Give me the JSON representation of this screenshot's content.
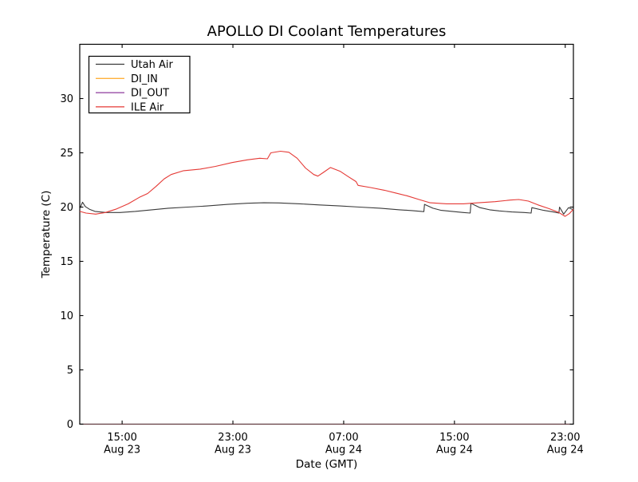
{
  "figure": {
    "background": "#ffffff"
  },
  "chart_data": {
    "type": "line",
    "title": "APOLLO DI Coolant Temperatures",
    "xlabel": "Date (GMT)",
    "ylabel": "Temperature (C)",
    "x_encoding": "hours from left axis edge (left edge ~ Aug 23 12:00 GMT)",
    "xlim": [
      0,
      35.65
    ],
    "ylim": [
      0,
      35
    ],
    "yticks": [
      0,
      5,
      10,
      15,
      20,
      25,
      30
    ],
    "xticks": [
      {
        "t": 3.06,
        "time": "15:00",
        "date": "Aug 23"
      },
      {
        "t": 11.06,
        "time": "23:00",
        "date": "Aug 23"
      },
      {
        "t": 19.06,
        "time": "07:00",
        "date": "Aug 24"
      },
      {
        "t": 27.06,
        "time": "15:00",
        "date": "Aug 24"
      },
      {
        "t": 35.06,
        "time": "23:00",
        "date": "Aug 24"
      }
    ],
    "grid": false,
    "legend_position": "upper left",
    "series": [
      {
        "name": "Utah Air",
        "color": "#3a3a3a",
        "points": [
          [
            0,
            19.85
          ],
          [
            0.2,
            20.45
          ],
          [
            0.4,
            20.05
          ],
          [
            0.7,
            19.8
          ],
          [
            1.1,
            19.6
          ],
          [
            1.9,
            19.5
          ],
          [
            2.9,
            19.5
          ],
          [
            4,
            19.6
          ],
          [
            5.2,
            19.75
          ],
          [
            6.4,
            19.9
          ],
          [
            7.8,
            20.0
          ],
          [
            9.2,
            20.1
          ],
          [
            10.7,
            20.25
          ],
          [
            12.1,
            20.35
          ],
          [
            13.3,
            20.4
          ],
          [
            14.4,
            20.38
          ],
          [
            15.9,
            20.3
          ],
          [
            17.3,
            20.2
          ],
          [
            18.8,
            20.1
          ],
          [
            20.2,
            20.0
          ],
          [
            21.7,
            19.9
          ],
          [
            23.1,
            19.75
          ],
          [
            24,
            19.68
          ],
          [
            24.85,
            19.58
          ],
          [
            24.9,
            20.25
          ],
          [
            25.5,
            19.9
          ],
          [
            26.1,
            19.7
          ],
          [
            26.9,
            19.6
          ],
          [
            27.7,
            19.5
          ],
          [
            28.2,
            19.45
          ],
          [
            28.25,
            20.35
          ],
          [
            28.9,
            19.95
          ],
          [
            29.6,
            19.75
          ],
          [
            30.3,
            19.65
          ],
          [
            31.2,
            19.55
          ],
          [
            32.1,
            19.5
          ],
          [
            32.6,
            19.45
          ],
          [
            32.65,
            19.95
          ],
          [
            33.5,
            19.7
          ],
          [
            34.2,
            19.55
          ],
          [
            34.6,
            19.45
          ],
          [
            34.65,
            20.0
          ],
          [
            34.95,
            19.35
          ],
          [
            35.3,
            19.95
          ],
          [
            35.65,
            19.75
          ]
        ]
      },
      {
        "name": "DI_IN",
        "color": "#ffb13b",
        "points": [
          [
            0,
            0
          ],
          [
            35.65,
            0
          ]
        ]
      },
      {
        "name": "DI_OUT",
        "color": "#8e3a9c",
        "opacity": 0.6,
        "points": [
          [
            0,
            0
          ],
          [
            35.65,
            0
          ]
        ]
      },
      {
        "name": "ILE Air",
        "color": "#e53935",
        "points": [
          [
            0,
            19.6
          ],
          [
            0.45,
            19.45
          ],
          [
            1.15,
            19.35
          ],
          [
            1.85,
            19.5
          ],
          [
            2.6,
            19.8
          ],
          [
            3.5,
            20.3
          ],
          [
            4.3,
            20.9
          ],
          [
            4.9,
            21.25
          ],
          [
            5.5,
            21.9
          ],
          [
            6.1,
            22.6
          ],
          [
            6.6,
            23.0
          ],
          [
            7.5,
            23.35
          ],
          [
            8.7,
            23.5
          ],
          [
            9.8,
            23.75
          ],
          [
            11,
            24.1
          ],
          [
            12.1,
            24.35
          ],
          [
            13,
            24.5
          ],
          [
            13.55,
            24.45
          ],
          [
            13.8,
            25.0
          ],
          [
            14.5,
            25.15
          ],
          [
            15.1,
            25.05
          ],
          [
            15.7,
            24.5
          ],
          [
            16.3,
            23.6
          ],
          [
            16.9,
            23.0
          ],
          [
            17.2,
            22.85
          ],
          [
            17.6,
            23.2
          ],
          [
            18.1,
            23.65
          ],
          [
            18.8,
            23.3
          ],
          [
            19.4,
            22.8
          ],
          [
            19.95,
            22.35
          ],
          [
            20.1,
            22.0
          ],
          [
            21,
            21.8
          ],
          [
            22,
            21.55
          ],
          [
            22.8,
            21.3
          ],
          [
            23.6,
            21.05
          ],
          [
            24.5,
            20.7
          ],
          [
            25.3,
            20.4
          ],
          [
            26.5,
            20.3
          ],
          [
            27.7,
            20.3
          ],
          [
            28.8,
            20.4
          ],
          [
            30,
            20.5
          ],
          [
            31.1,
            20.65
          ],
          [
            31.7,
            20.7
          ],
          [
            32.4,
            20.55
          ],
          [
            33.1,
            20.2
          ],
          [
            33.9,
            19.85
          ],
          [
            34.6,
            19.5
          ],
          [
            35.05,
            19.15
          ],
          [
            35.35,
            19.4
          ],
          [
            35.65,
            19.8
          ]
        ]
      }
    ]
  },
  "legend": {
    "entries": [
      "Utah Air",
      "DI_IN",
      "DI_OUT",
      "ILE Air"
    ]
  },
  "colors": {
    "axis": "#000000",
    "text": "#000000",
    "figure_bg": "#ffffff"
  }
}
